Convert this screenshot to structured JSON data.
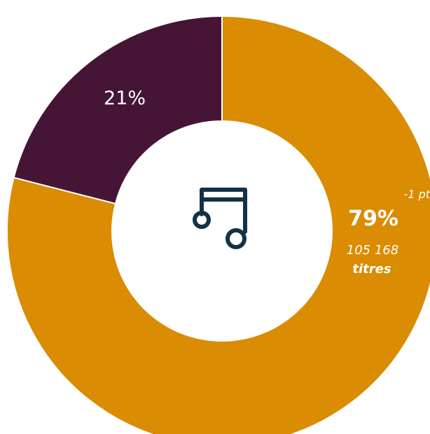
{
  "chart_data": {
    "type": "pie",
    "donut": true,
    "categories": [
      "",
      ""
    ],
    "values": [
      79,
      21
    ],
    "colors": [
      "#da8c02",
      "#461535"
    ],
    "labels": {
      "large": {
        "percent": "79%",
        "change": "-1 pt",
        "count": "105 168",
        "unit": "titres"
      },
      "small": {
        "percent": "21%"
      }
    }
  },
  "center_icon": {
    "name": "music-note-icon",
    "color": "#123247"
  }
}
